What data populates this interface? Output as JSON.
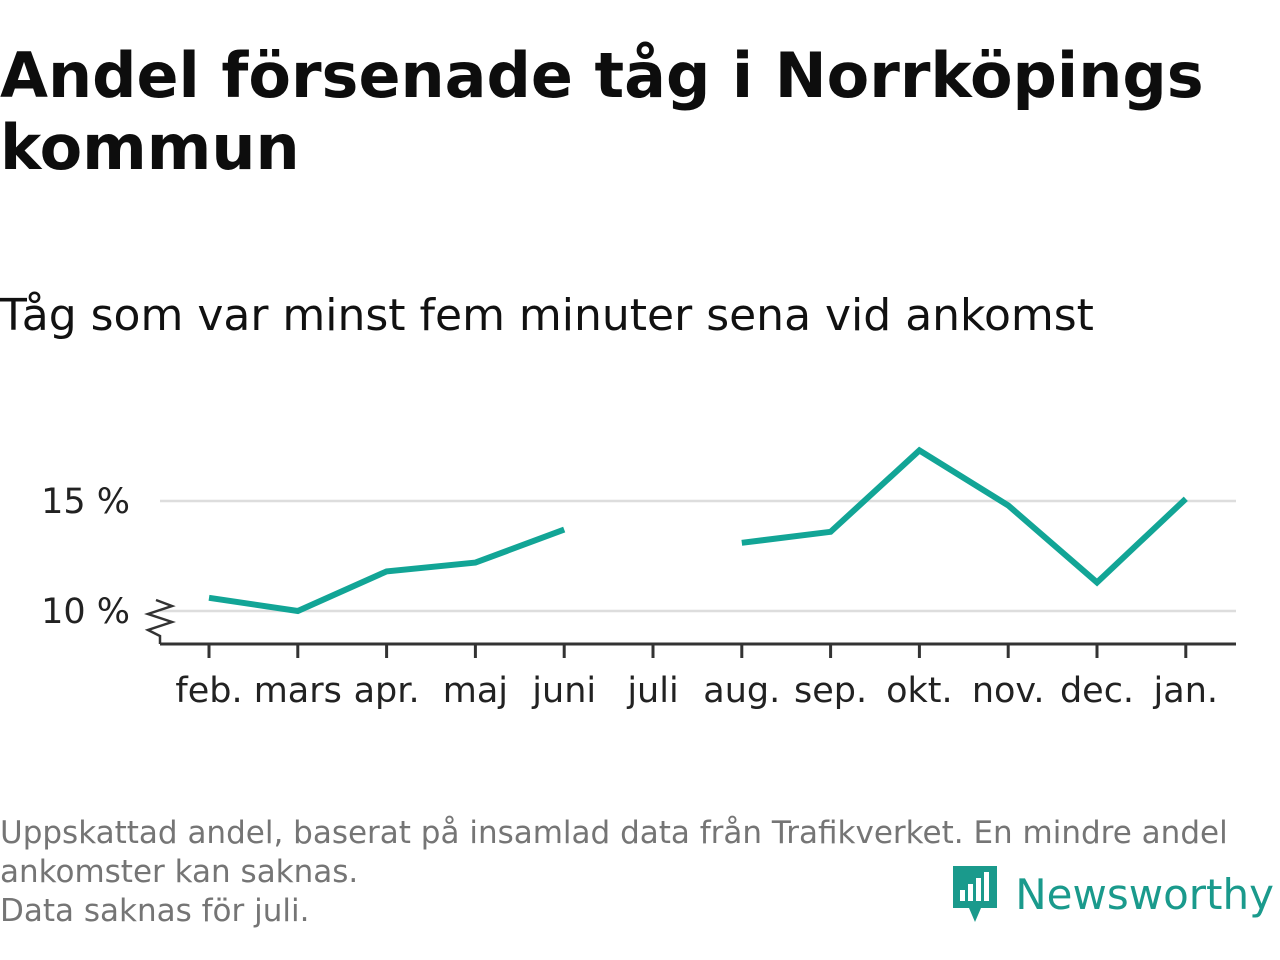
{
  "header": {
    "title": "Andel försenade tåg i Norrköpings kommun",
    "subtitle": "Tåg som var minst fem minuter sena vid ankomst"
  },
  "footnote": {
    "lines": [
      "Uppskattad andel, baserat på insamlad data från Trafikverket. En mindre andel",
      "ankomster kan saknas.",
      "Data saknas för juli."
    ]
  },
  "brand": {
    "name": "Newsworthy",
    "logo_icon": "newsworthy-chart-logo-icon"
  },
  "colors": {
    "line": "#12a596",
    "grid": "#dddddd",
    "axis": "#333333",
    "brand": "#1a9a8c"
  },
  "chart_data": {
    "type": "line",
    "categories": [
      "feb.",
      "mars",
      "apr.",
      "maj",
      "juni",
      "juli",
      "aug.",
      "sep.",
      "okt.",
      "nov.",
      "dec.",
      "jan."
    ],
    "series": [
      {
        "values": [
          10.6,
          10.0,
          11.8,
          12.2,
          13.7,
          null,
          13.1,
          13.6,
          17.3,
          14.8,
          11.3,
          15.1
        ]
      }
    ],
    "yticks": [
      10,
      15
    ],
    "ytick_labels": [
      "10 %",
      "15 %"
    ],
    "ylim": [
      8.5,
      18
    ],
    "axis_break": true,
    "grid": true,
    "legend": "none"
  }
}
